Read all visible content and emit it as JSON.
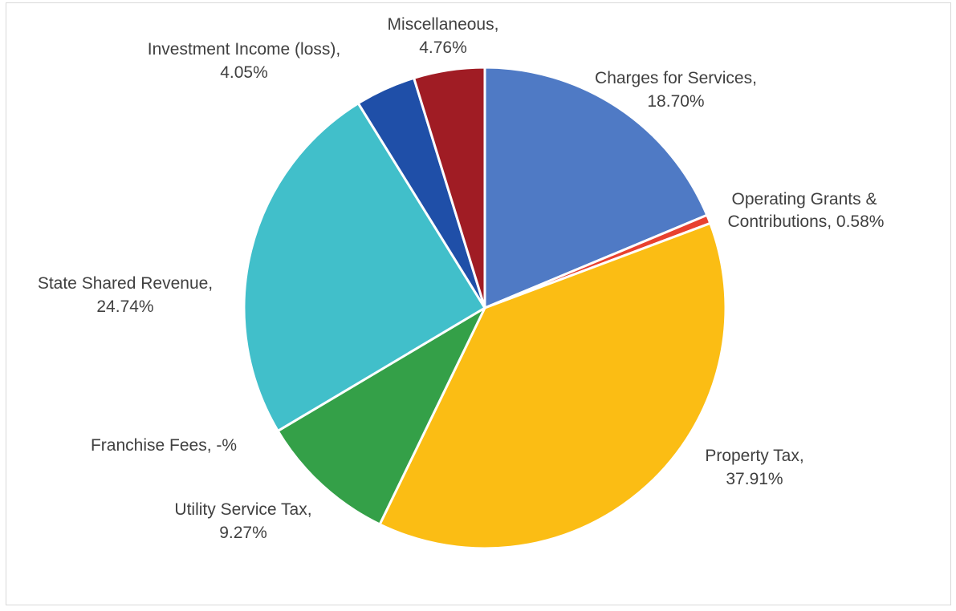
{
  "chart_data": {
    "type": "pie",
    "title": "",
    "legend": "none",
    "slices": [
      {
        "label": "Charges for Services,",
        "value": 18.7,
        "value_label": "18.70%",
        "color": "#4f7ac5"
      },
      {
        "label": "Operating Grants &",
        "label2": "Contributions, 0.58%",
        "value": 0.58,
        "value_label": "",
        "color": "#e8412f"
      },
      {
        "label": "Property Tax,",
        "value": 37.91,
        "value_label": "37.91%",
        "color": "#fbbd14"
      },
      {
        "label": "Utility Service Tax,",
        "value": 9.27,
        "value_label": "9.27%",
        "color": "#34a048"
      },
      {
        "label": "Franchise Fees, -%",
        "value": 0,
        "value_label": "",
        "color": "#8c8c8c"
      },
      {
        "label": "State Shared Revenue,",
        "value": 24.74,
        "value_label": "24.74%",
        "color": "#41bfca"
      },
      {
        "label": "Investment Income (loss),",
        "value": 4.05,
        "value_label": "4.05%",
        "color": "#1f4fa8"
      },
      {
        "label": "Miscellaneous,",
        "value": 4.76,
        "value_label": "4.76%",
        "color": "#a01c24"
      }
    ]
  }
}
